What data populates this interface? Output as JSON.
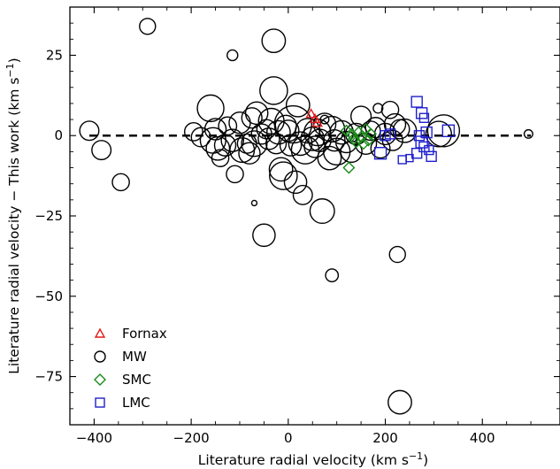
{
  "chart_data": {
    "type": "scatter",
    "xlabel": "Literature radial velocity (km s",
    "xlabel_unit_exp": "−1",
    "xlabel_end": ")",
    "ylabel": "Literature radial velocity − This work (km s",
    "ylabel_unit_exp": "−1",
    "ylabel_end": ")",
    "xlim": [
      -450,
      560
    ],
    "ylim": [
      -90,
      40
    ],
    "xticks": [
      -400,
      -200,
      0,
      200,
      400
    ],
    "yticks": [
      25,
      0,
      -25,
      -50,
      -75
    ],
    "xtick_labels": [
      "−400",
      "−200",
      "0",
      "200",
      "400"
    ],
    "ytick_labels": [
      "25",
      "0",
      "−25",
      "−50",
      "−75"
    ],
    "reference_line": {
      "y": 0,
      "style": "dashed"
    },
    "legend_position": "lower-left",
    "series": [
      {
        "name": "Fornax",
        "marker": "triangle",
        "color": "#e41a1c",
        "points": [
          [
            47,
            6.8
          ],
          [
            55,
            5.2
          ],
          [
            60,
            4.0
          ]
        ]
      },
      {
        "name": "MW",
        "marker": "circle",
        "color": "#000000",
        "points": [
          [
            -290,
            34,
            1.5
          ],
          [
            -115,
            25,
            1
          ],
          [
            -30,
            29.5,
            2.2
          ],
          [
            -410,
            1.5,
            1.8
          ],
          [
            -385,
            -4.5,
            1.8
          ],
          [
            -345,
            -14.5,
            1.6
          ],
          [
            -195,
            1.2,
            1.7
          ],
          [
            -160,
            8.5,
            2.5
          ],
          [
            -155,
            -1.5,
            2.4
          ],
          [
            -150,
            2,
            2
          ],
          [
            -145,
            -4,
            2.2
          ],
          [
            -140,
            -7,
            1.6
          ],
          [
            -125,
            3,
            1.7
          ],
          [
            -115,
            -1.5,
            2.1
          ],
          [
            -110,
            -12,
            1.6
          ],
          [
            -100,
            4,
            2
          ],
          [
            -95,
            -4.5,
            2.3
          ],
          [
            -85,
            -2.5,
            1.8
          ],
          [
            -80,
            -5.5,
            2
          ],
          [
            -75,
            5.5,
            1.9
          ],
          [
            -70,
            -2.5,
            2.4
          ],
          [
            -65,
            7,
            2.1
          ],
          [
            -55,
            0.5,
            1.9
          ],
          [
            -50,
            -31,
            2.1
          ],
          [
            -45,
            2,
            1.8
          ],
          [
            -40,
            -1,
            2
          ],
          [
            -35,
            4.5,
            2.4
          ],
          [
            -30,
            14,
            2.6
          ],
          [
            -25,
            -2.5,
            1.9
          ],
          [
            -20,
            1,
            2.2
          ],
          [
            -15,
            -10.5,
            2.2
          ],
          [
            -10,
            -12.5,
            2.6
          ],
          [
            -5,
            3,
            2
          ],
          [
            0,
            1.5,
            2
          ],
          [
            5,
            -3,
            2
          ],
          [
            10,
            3.5,
            3.5
          ],
          [
            15,
            -14.5,
            2.1
          ],
          [
            20,
            9.5,
            2.2
          ],
          [
            25,
            -2.5,
            2.2
          ],
          [
            30,
            -18.5,
            1.8
          ],
          [
            35,
            -4.5,
            2.6
          ],
          [
            40,
            1.5,
            2.3
          ],
          [
            50,
            -1,
            2.2
          ],
          [
            55,
            -3.5,
            2
          ],
          [
            60,
            1,
            2.5
          ],
          [
            65,
            -1.5,
            2.1
          ],
          [
            70,
            -23.5,
            2.3
          ],
          [
            75,
            3.5,
            2.1
          ],
          [
            85,
            -7,
            2.2
          ],
          [
            90,
            2,
            2.4
          ],
          [
            95,
            -1.5,
            2
          ],
          [
            100,
            -5,
            2.5
          ],
          [
            110,
            1,
            2.2
          ],
          [
            120,
            -2,
            2
          ],
          [
            130,
            -5,
            2
          ],
          [
            140,
            0.5,
            2
          ],
          [
            150,
            6,
            1.9
          ],
          [
            160,
            -2.5,
            2
          ],
          [
            170,
            1.5,
            1.8
          ],
          [
            180,
            2.5,
            1.9
          ],
          [
            190,
            -4,
            1.8
          ],
          [
            200,
            0.5,
            2
          ],
          [
            210,
            8,
            1.6
          ],
          [
            215,
            -1.5,
            1.9
          ],
          [
            220,
            3.5,
            2
          ],
          [
            230,
            2,
            1.8
          ],
          [
            240,
            1.5,
            2.2
          ],
          [
            90,
            -43.5,
            1.2
          ],
          [
            225,
            -37,
            1.5
          ],
          [
            230,
            -83,
            2.2
          ],
          [
            320,
            1.5,
            3
          ],
          [
            495,
            0.5,
            0.8
          ],
          [
            -70,
            -21,
            0.5
          ],
          [
            75,
            5,
            0.8
          ],
          [
            185,
            8.5,
            0.9
          ],
          [
            310,
            0.5,
            2.4
          ],
          [
            -180,
            -0.5,
            1.8
          ],
          [
            -130,
            -3,
            2
          ]
        ]
      },
      {
        "name": "SMC",
        "marker": "diamond",
        "color": "#1a8a1a",
        "points": [
          [
            120,
            1.5
          ],
          [
            125,
            -10
          ],
          [
            130,
            0.5
          ],
          [
            135,
            -1
          ],
          [
            140,
            -2
          ],
          [
            145,
            1
          ],
          [
            150,
            -0.5
          ],
          [
            155,
            -2.5
          ],
          [
            160,
            2
          ],
          [
            165,
            -1.5
          ],
          [
            170,
            0.5
          ]
        ]
      },
      {
        "name": "LMC",
        "marker": "square",
        "color": "#1f1fcc",
        "points": [
          [
            190,
            -5.5,
            1.3
          ],
          [
            200,
            0,
            1.1
          ],
          [
            210,
            0.5,
            1.1
          ],
          [
            235,
            -7.5,
            0.9
          ],
          [
            250,
            -7,
            0.8
          ],
          [
            265,
            -5.5,
            1.1
          ],
          [
            265,
            10.5,
            1.2
          ],
          [
            270,
            0,
            1.1
          ],
          [
            275,
            -2,
            1.3
          ],
          [
            275,
            7,
            1.2
          ],
          [
            280,
            5.5,
            1
          ],
          [
            280,
            -3.5,
            1.1
          ],
          [
            290,
            -4.5,
            1
          ],
          [
            295,
            -6.5,
            1.1
          ],
          [
            330,
            1.5,
            1.3
          ],
          [
            285,
            1,
            1.2
          ]
        ]
      }
    ]
  }
}
